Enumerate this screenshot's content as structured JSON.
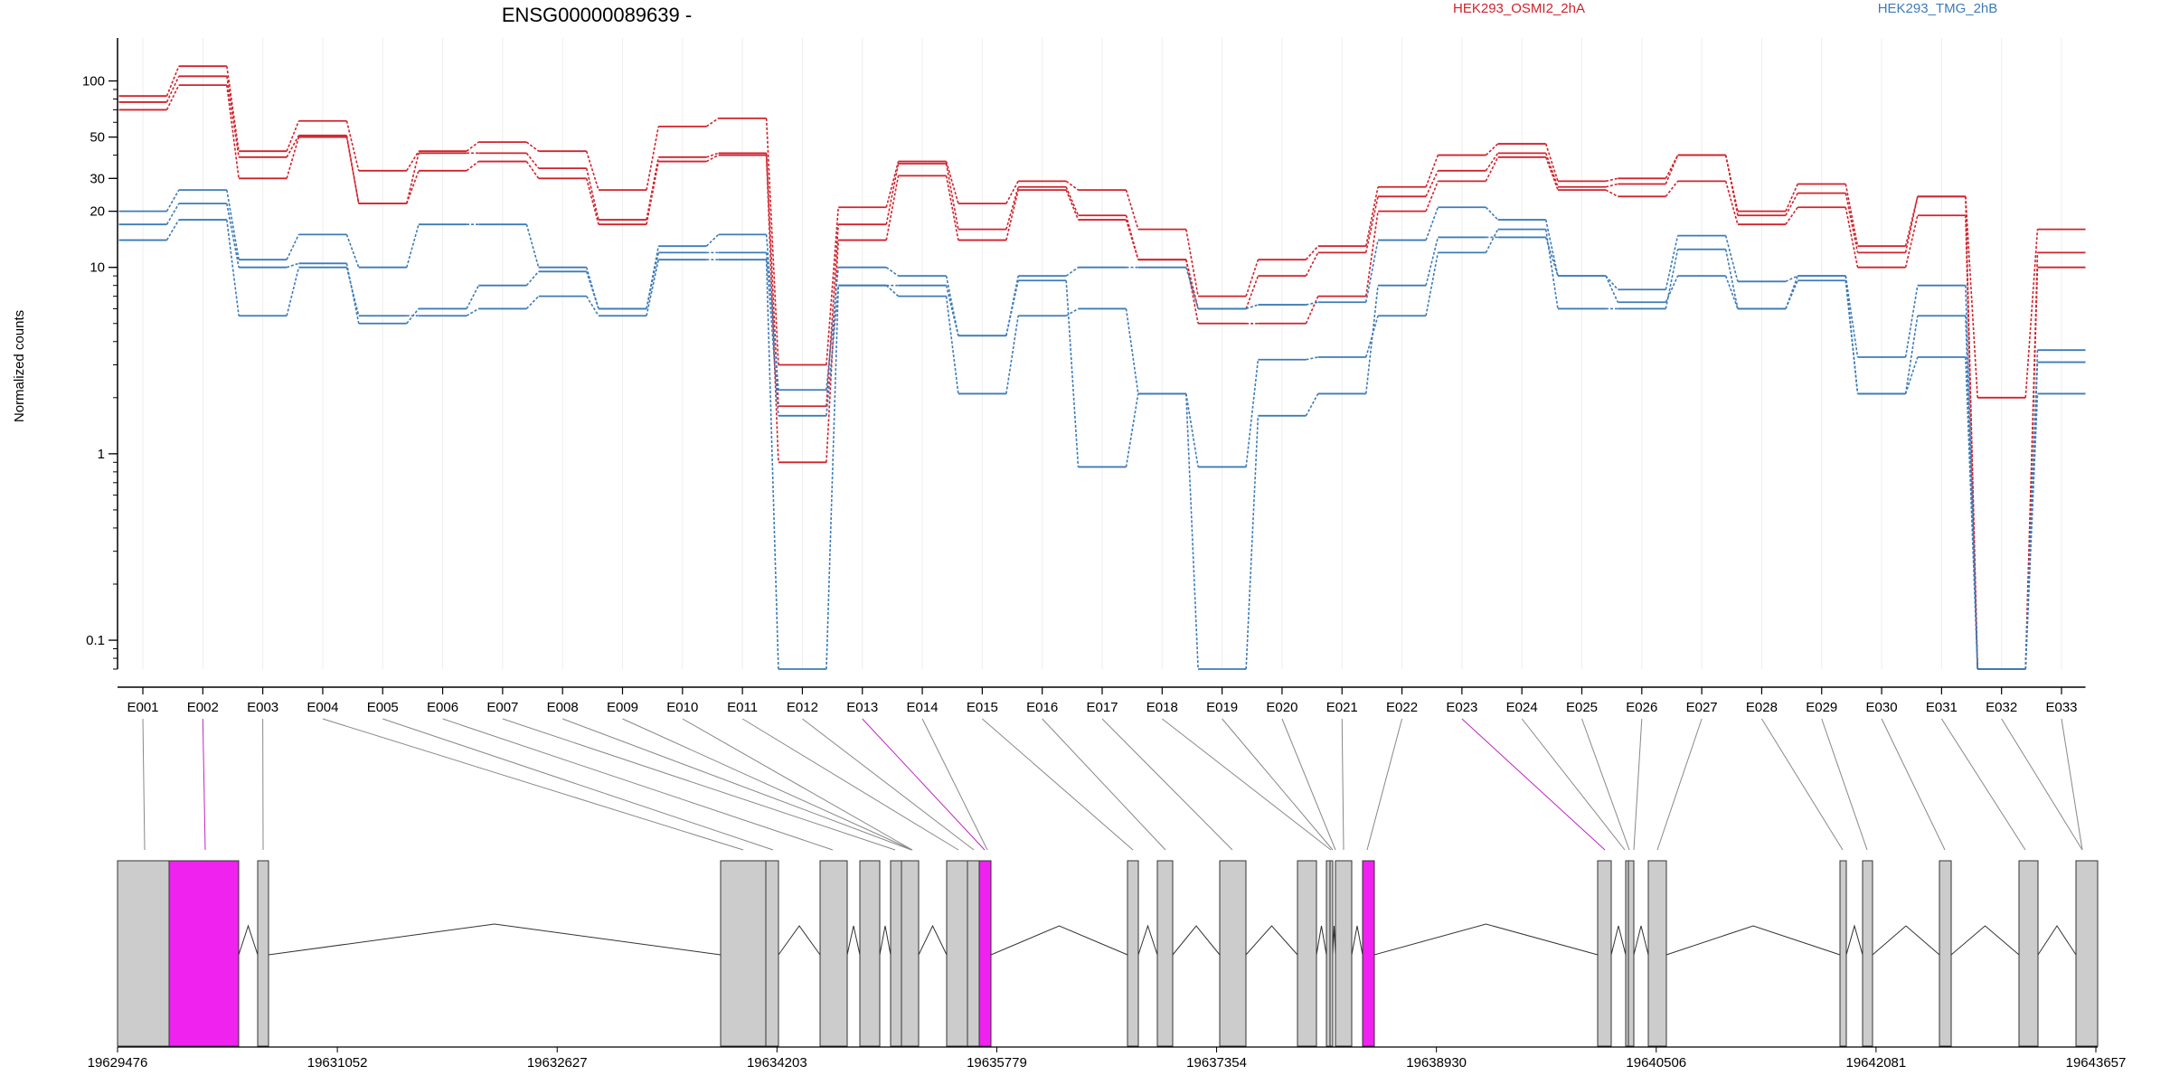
{
  "chart_data": {
    "type": "line",
    "title": "ENSG00000089639 -",
    "ylabel": "Normalized counts",
    "yscale": "log",
    "ylim": [
      0.07,
      170
    ],
    "yticks": [
      0.1,
      1,
      10,
      20,
      30,
      50,
      100
    ],
    "ytick_labels": [
      "0.1",
      "1",
      "10",
      "20",
      "30",
      "50",
      "100"
    ],
    "legend": [
      {
        "label": "HEK293_OSMI2_2hA",
        "color": "#d0222b"
      },
      {
        "label": "HEK293_TMG_2hB",
        "color": "#3d7bb7"
      }
    ],
    "categories": [
      "E001",
      "E002",
      "E003",
      "E004",
      "E005",
      "E006",
      "E007",
      "E008",
      "E009",
      "E010",
      "E011",
      "E012",
      "E013",
      "E014",
      "E015",
      "E016",
      "E017",
      "E018",
      "E019",
      "E020",
      "E021",
      "E022",
      "E023",
      "E024",
      "E025",
      "E026",
      "E027",
      "E028",
      "E029",
      "E030",
      "E031",
      "E032",
      "E033"
    ],
    "highlighted_exons": [
      "E002",
      "E013",
      "E023"
    ],
    "series": [
      {
        "group": "HEK293_OSMI2_2hA",
        "color": "#d0222b",
        "values": [
          83,
          120,
          42,
          61,
          33,
          42,
          47,
          42,
          26,
          57,
          63,
          3.0,
          21,
          37,
          22,
          29,
          26,
          16,
          7,
          11,
          13,
          27,
          40,
          46,
          29,
          30,
          40,
          20,
          28,
          13,
          24,
          2.0,
          16
        ]
      },
      {
        "group": "HEK293_OSMI2_2hA",
        "color": "#d0222b",
        "values": [
          77,
          106,
          39,
          51,
          22,
          41,
          41,
          34,
          18,
          39,
          41,
          1.8,
          17,
          36,
          16,
          27,
          19,
          11,
          6,
          9,
          12,
          24,
          33,
          41,
          27,
          28,
          40,
          19,
          25,
          12,
          24,
          0.07,
          12
        ]
      },
      {
        "group": "HEK293_OSMI2_2hA",
        "color": "#d0222b",
        "values": [
          70,
          95,
          30,
          50,
          22,
          33,
          37,
          30,
          17,
          37,
          40,
          0.9,
          14,
          31,
          14,
          26,
          18,
          11,
          5,
          5,
          7,
          20,
          29,
          39,
          26,
          24,
          29,
          17,
          21,
          10,
          19,
          0.07,
          10
        ]
      },
      {
        "group": "HEK293_TMG_2hB",
        "color": "#3d7bb7",
        "values": [
          20,
          26,
          11,
          15,
          10,
          17,
          17,
          10,
          6,
          13,
          15,
          2.2,
          10,
          9,
          4.3,
          9,
          10,
          10,
          6,
          6.3,
          6.5,
          14,
          21,
          18,
          9,
          7.6,
          14.8,
          8.4,
          9,
          3.3,
          8,
          0.07,
          3.6
        ]
      },
      {
        "group": "HEK293_TMG_2hB",
        "color": "#3d7bb7",
        "values": [
          17,
          22,
          10,
          10.5,
          5,
          6,
          8,
          9.5,
          6,
          12,
          12,
          1.6,
          8,
          8,
          4.3,
          8.5,
          0.85,
          2.1,
          0.85,
          3.2,
          3.3,
          5.5,
          12,
          16,
          6,
          6,
          12.5,
          6,
          8.5,
          2.1,
          5.5,
          0.07,
          3.1
        ]
      },
      {
        "group": "HEK293_TMG_2hB",
        "color": "#3d7bb7",
        "values": [
          14,
          18,
          5.5,
          10,
          5.5,
          5.5,
          6,
          7,
          5.5,
          11,
          11,
          0.07,
          8,
          7,
          2.1,
          5.5,
          6,
          2.1,
          0.07,
          1.6,
          2.1,
          8,
          14.5,
          14.5,
          9,
          6.5,
          9,
          6,
          9,
          2.1,
          3.3,
          0.07,
          2.1
        ]
      }
    ],
    "genomic_axis": {
      "tick_labels": [
        "19629476",
        "19631052",
        "19632627",
        "19634203",
        "19635779",
        "19637354",
        "19638930",
        "19640506",
        "19642081",
        "19643657"
      ]
    }
  }
}
